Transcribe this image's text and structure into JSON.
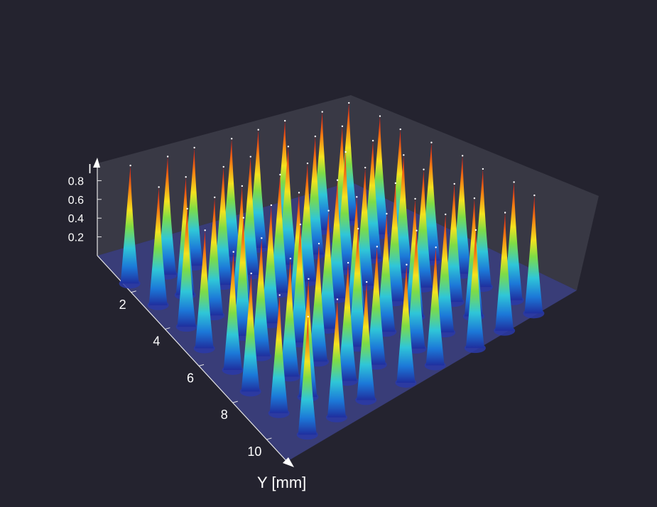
{
  "chart_data": {
    "type": "surface3d",
    "title": "",
    "xlabel": "",
    "ylabel": "Y [mm]",
    "zlabel": "I",
    "y_ticks": [
      "2",
      "4",
      "6",
      "8",
      "10"
    ],
    "z_ticks": [
      "0.2",
      "0.4",
      "0.6",
      "0.8"
    ],
    "zlim": [
      0,
      1
    ],
    "grid": false,
    "colormap": "jet",
    "colorscale": [
      "#1f2f9e",
      "#1c78d8",
      "#2fc6d8",
      "#7ddc46",
      "#f4e31e",
      "#f57d12",
      "#d4141a"
    ],
    "description": "Array of intensity peaks (conical spikes) over a planar grid",
    "peaks": {
      "rows": 8,
      "cols": 8,
      "peak_intensity": 0.95
    }
  }
}
